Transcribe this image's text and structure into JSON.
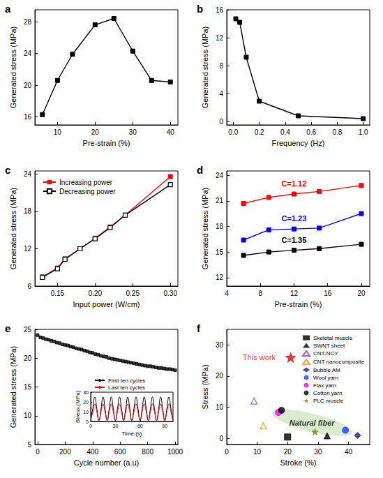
{
  "chart_data": [
    {
      "type": "line",
      "title": "a",
      "xlabel": "Pre-strain (%)",
      "ylabel": "Generated stress (MPa)",
      "x": [
        6,
        10,
        14,
        20,
        25,
        30,
        35,
        40
      ],
      "values": [
        16.3,
        20.6,
        23.9,
        27.6,
        28.4,
        24.3,
        20.6,
        20.4
      ],
      "color": "#000000",
      "marker": "square",
      "xlim": [
        4,
        42
      ],
      "ylim": [
        15,
        29.5
      ],
      "xticks": [
        10,
        20,
        30,
        40
      ],
      "yticks": [
        16,
        20,
        24,
        28
      ],
      "grid": false
    },
    {
      "type": "line",
      "title": "b",
      "xlabel": "Frequency (Hz)",
      "ylabel": "Generated stress (MPa)",
      "x": [
        0.02,
        0.05,
        0.1,
        0.2,
        0.5,
        1.0
      ],
      "values": [
        14.7,
        14.2,
        9.2,
        2.9,
        0.8,
        0.4
      ],
      "color": "#000000",
      "marker": "square",
      "xlim": [
        -0.05,
        1.05
      ],
      "ylim": [
        -0.5,
        16
      ],
      "xticks": [
        {
          "value": 0,
          "label": "0.0"
        },
        0.2,
        0.4,
        0.6,
        0.8,
        {
          "value": 1,
          "label": "1.0"
        }
      ],
      "yticks": [
        0,
        4,
        8,
        12,
        16
      ],
      "grid": false
    },
    {
      "type": "line",
      "title": "c",
      "xlabel": "Input power (W/cm)",
      "ylabel": "Generated stress (MPa)",
      "x": [
        0.13,
        0.15,
        0.16,
        0.18,
        0.2,
        0.22,
        0.24,
        0.3
      ],
      "series": [
        {
          "name": "Increasing power",
          "color": "#ff0000",
          "marker": "square",
          "values": [
            7.5,
            8.9,
            10.4,
            12.0,
            13.7,
            15.5,
            17.4,
            23.6
          ]
        },
        {
          "name": "Decreasing power",
          "color": "#000000",
          "marker": "square-open",
          "values": [
            7.4,
            8.8,
            10.3,
            12.0,
            13.6,
            15.4,
            17.4,
            22.3
          ]
        }
      ],
      "xlim": [
        0.12,
        0.31
      ],
      "ylim": [
        6,
        24.5
      ],
      "xticks": [
        0.15,
        {
          "value": 0.2,
          "label": "0.20"
        },
        0.25,
        {
          "value": 0.3,
          "label": "0.30"
        }
      ],
      "yticks": [
        6,
        12,
        18,
        24
      ],
      "legend": "upper left",
      "grid": false
    },
    {
      "type": "line",
      "title": "d",
      "xlabel": "Pre-strain (%)",
      "ylabel": "Generated stress (MPa)",
      "x": [
        6,
        9,
        12,
        15,
        20
      ],
      "series": [
        {
          "name": "C=1.12",
          "color": "#ff0000",
          "marker": "square",
          "values": [
            20.7,
            21.4,
            21.8,
            22.1,
            22.8
          ]
        },
        {
          "name": "C=1.23",
          "color": "#0000ff",
          "marker": "square",
          "values": [
            16.4,
            17.6,
            17.7,
            17.8,
            19.5
          ]
        },
        {
          "name": "C=1.35",
          "color": "#000000",
          "marker": "square",
          "values": [
            14.6,
            15.0,
            15.2,
            15.4,
            15.9
          ]
        }
      ],
      "xlim": [
        4,
        21
      ],
      "ylim": [
        11,
        24.5
      ],
      "xticks": [
        4,
        8,
        12,
        16,
        20
      ],
      "yticks": [
        12,
        15,
        18,
        21,
        24
      ],
      "legend": "inline",
      "grid": false
    },
    {
      "type": "scatter",
      "title": "e",
      "xlabel": "Cycle number (a.u)",
      "ylabel": "Generated stress (MPa)",
      "x": [
        0,
        20,
        40,
        60,
        80,
        100,
        120,
        140,
        160,
        180,
        200,
        220,
        240,
        260,
        280,
        300,
        320,
        340,
        360,
        380,
        400,
        420,
        440,
        460,
        480,
        500,
        520,
        540,
        560,
        580,
        600,
        620,
        640,
        660,
        680,
        700,
        720,
        740,
        760,
        780,
        800,
        820,
        840,
        860,
        880,
        900,
        920,
        940,
        960,
        980,
        1000
      ],
      "values": [
        24.0,
        23.6,
        23.5,
        23.3,
        23.2,
        23.0,
        22.9,
        22.7,
        22.6,
        22.4,
        22.3,
        22.2,
        22.0,
        21.9,
        21.7,
        21.6,
        21.5,
        21.3,
        21.2,
        21.0,
        20.9,
        20.7,
        20.6,
        20.4,
        20.3,
        20.2,
        20.0,
        19.9,
        19.8,
        19.7,
        19.6,
        19.5,
        19.4,
        19.3,
        19.2,
        19.1,
        19.0,
        18.9,
        18.8,
        18.7,
        18.6,
        18.6,
        18.5,
        18.4,
        18.3,
        18.3,
        18.2,
        18.1,
        18.1,
        18.0,
        17.9
      ],
      "color": "#000000",
      "marker": "square",
      "xlim": [
        -20,
        1020
      ],
      "ylim": [
        5,
        25
      ],
      "xticks": [
        0,
        200,
        400,
        600,
        800,
        1000
      ],
      "yticks": [
        5,
        10,
        15,
        20,
        25
      ],
      "grid": false
    },
    {
      "type": "line",
      "xlabel": "Time (s)",
      "ylabel": "Stress (MPa)",
      "x": [
        0,
        2.5,
        5,
        7.5,
        10,
        12.5,
        15,
        17.5,
        20,
        22.5,
        25,
        27.5,
        30,
        32.5,
        35,
        37.5,
        40,
        42.5,
        45,
        47.5,
        50,
        52.5,
        55,
        57.5,
        60,
        62.5,
        65,
        67.5,
        70,
        72.5,
        75,
        77.5,
        80,
        82.5,
        85,
        87.5,
        90,
        92.5,
        95,
        97.5,
        100
      ],
      "series": [
        {
          "name": "First ten cycles",
          "color": "#000000",
          "values": [
            1,
            13,
            25,
            13,
            1,
            13,
            25,
            13,
            1,
            13,
            25,
            13,
            1,
            13,
            25,
            13,
            1,
            13,
            25,
            13,
            1,
            13,
            25,
            13,
            1,
            13,
            25,
            13,
            1,
            13,
            25,
            13,
            1,
            13,
            25,
            13,
            1,
            13,
            25,
            13,
            1
          ]
        },
        {
          "name": "Last ten cycles",
          "color": "#ff0000",
          "values": [
            1,
            9.5,
            18,
            9.5,
            1,
            9.5,
            18,
            9.5,
            1,
            9.5,
            18,
            9.5,
            1,
            9.5,
            18,
            9.5,
            1,
            9.5,
            18,
            9.5,
            1,
            9.5,
            18,
            9.5,
            1,
            9.5,
            18,
            9.5,
            1,
            9.5,
            18,
            9.5,
            1,
            9.5,
            18,
            9.5,
            1,
            9.5,
            18,
            9.5,
            1
          ]
        }
      ],
      "xlim": [
        0,
        100
      ],
      "ylim": [
        0,
        30
      ],
      "xticks": [
        0,
        30,
        60,
        90
      ],
      "yticks": [
        0,
        10,
        20,
        30
      ],
      "legend": "upper left",
      "grid": false
    },
    {
      "type": "scatter",
      "title": "f",
      "xlabel": "Stroke (%)",
      "ylabel": "Stress (MPa)",
      "series": [
        {
          "name": "Skeletal muscle",
          "color": "#000000",
          "marker": "square",
          "x": [
            20
          ],
          "values": [
            0.4
          ]
        },
        {
          "name": "SWNT sheet",
          "color": "#000000",
          "marker": "triangle",
          "x": [
            33
          ],
          "values": [
            0.8
          ]
        },
        {
          "name": "CNT-NCY",
          "color": "#9b30c8",
          "marker": "triangle-open",
          "x": [
            9
          ],
          "values": [
            12
          ]
        },
        {
          "name": "CNT nanocomposite",
          "color": "#ff8c00",
          "marker": "triangle-open",
          "x": [
            12
          ],
          "values": [
            4
          ]
        },
        {
          "name": "Bubble AM",
          "color": "#1a1aa0",
          "marker": "diamond",
          "x": [
            43
          ],
          "values": [
            0.9
          ]
        },
        {
          "name": "Wool yarn",
          "color": "#1f3fff",
          "marker": "circle",
          "x": [
            39
          ],
          "values": [
            2.6
          ]
        },
        {
          "name": "Flax yarn",
          "color": "#ff00ff",
          "marker": "circle",
          "x": [
            17
          ],
          "values": [
            8.3
          ]
        },
        {
          "name": "Cotton yarn",
          "color": "#000000",
          "marker": "circle",
          "x": [
            18
          ],
          "values": [
            9.0
          ]
        },
        {
          "name": "PLC muscle",
          "color": "#808000",
          "marker": "star",
          "x": [
            29
          ],
          "values": [
            2.1
          ]
        }
      ],
      "annotations": [
        {
          "text": "This work",
          "x": 21,
          "y": 26,
          "color": "#ff0000",
          "marker": "star"
        },
        {
          "text": "Natural fiber",
          "x": 28,
          "y": 5,
          "color": "#000000"
        }
      ],
      "xlim": [
        0,
        47
      ],
      "ylim": [
        -2,
        35
      ],
      "xticks": [
        0,
        10,
        20,
        30,
        40
      ],
      "yticks": [
        0,
        10,
        20,
        30
      ],
      "legend": "upper right",
      "grid": false
    }
  ]
}
